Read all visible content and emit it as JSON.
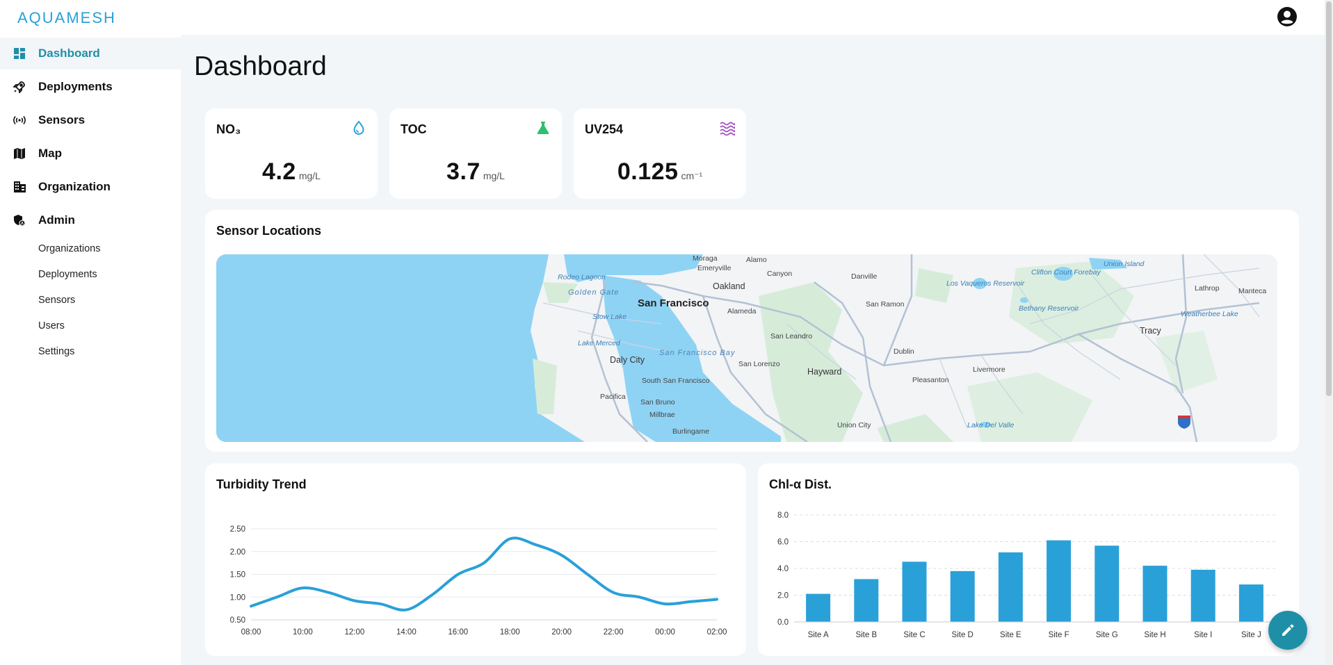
{
  "app": {
    "logo": "AQUAMESH"
  },
  "sidebar": {
    "items": [
      {
        "label": "Dashboard",
        "icon": "dashboard-icon",
        "active": true
      },
      {
        "label": "Deployments",
        "icon": "rocket-icon"
      },
      {
        "label": "Sensors",
        "icon": "sensor-icon"
      },
      {
        "label": "Map",
        "icon": "map-icon"
      },
      {
        "label": "Organization",
        "icon": "building-icon"
      },
      {
        "label": "Admin",
        "icon": "admin-shield-icon"
      }
    ],
    "admin_items": [
      "Organizations",
      "Deployments",
      "Sensors",
      "Users",
      "Settings"
    ]
  },
  "page": {
    "title": "Dashboard"
  },
  "kpis": [
    {
      "label": "NO₃",
      "value": "4.2",
      "unit": "mg/L",
      "icon": "water-drop-icon",
      "color": "#2aa0d8"
    },
    {
      "label": "TOC",
      "value": "3.7",
      "unit": "mg/L",
      "icon": "flask-icon",
      "color": "#2fbf71"
    },
    {
      "label": "UV254",
      "value": "0.125",
      "unit": "cm⁻¹",
      "icon": "waves-icon",
      "color": "#a44fc4"
    }
  ],
  "map": {
    "title": "Sensor Locations",
    "places": [
      "Moraga",
      "Alamo",
      "Emeryville",
      "Canyon",
      "Danville",
      "Rodeo Lagoon",
      "Oakland",
      "Golden Gate",
      "San Francisco",
      "San Ramon",
      "Stow Lake",
      "Alameda",
      "San Leandro",
      "Lake Merced",
      "San Francisco Bay",
      "Dublin",
      "Daly City",
      "San Lorenzo",
      "Hayward",
      "Livermore",
      "Pleasanton",
      "South San Francisco",
      "Pacifica",
      "San Bruno",
      "Millbrae",
      "Burlingame",
      "Union City",
      "Los Vaqueros Reservoir",
      "Clifton Court Forebay",
      "Union Island",
      "Bethany Reservoir",
      "Lathrop",
      "Manteca",
      "Weatherbee Lake",
      "Tracy",
      "Lake Del Valle",
      "5"
    ]
  },
  "turbidity": {
    "title": "Turbidity Trend",
    "chart_data": {
      "type": "line",
      "x": [
        "08:00",
        "09:00",
        "10:00",
        "11:00",
        "12:00",
        "13:00",
        "14:00",
        "15:00",
        "16:00",
        "17:00",
        "18:00",
        "19:00",
        "20:00",
        "21:00",
        "22:00",
        "23:00",
        "00:00",
        "01:00",
        "02:00"
      ],
      "x_ticks": [
        "08:00",
        "10:00",
        "12:00",
        "14:00",
        "16:00",
        "18:00",
        "20:00",
        "22:00",
        "00:00",
        "02:00"
      ],
      "values": [
        0.8,
        1.0,
        1.2,
        1.1,
        0.92,
        0.85,
        0.72,
        1.05,
        1.5,
        1.75,
        2.28,
        2.15,
        1.92,
        1.5,
        1.1,
        1.0,
        0.85,
        0.9,
        0.95
      ],
      "y_ticks": [
        "0.50",
        "1.00",
        "1.50",
        "2.00",
        "2.50"
      ],
      "ylim": [
        0.5,
        2.5
      ],
      "color": "#2aa0d8",
      "grid": true
    }
  },
  "chl": {
    "title": "Chl-α Dist.",
    "chart_data": {
      "type": "bar",
      "categories": [
        "Site A",
        "Site B",
        "Site C",
        "Site D",
        "Site E",
        "Site F",
        "Site G",
        "Site H",
        "Site I",
        "Site J"
      ],
      "values": [
        2.1,
        3.2,
        4.5,
        3.8,
        5.2,
        6.1,
        5.7,
        4.2,
        3.9,
        2.8
      ],
      "y_ticks": [
        "0.0",
        "2.0",
        "4.0",
        "6.0",
        "8.0"
      ],
      "ylim": [
        0,
        8
      ],
      "color": "#2aa0d8",
      "grid": true
    }
  }
}
